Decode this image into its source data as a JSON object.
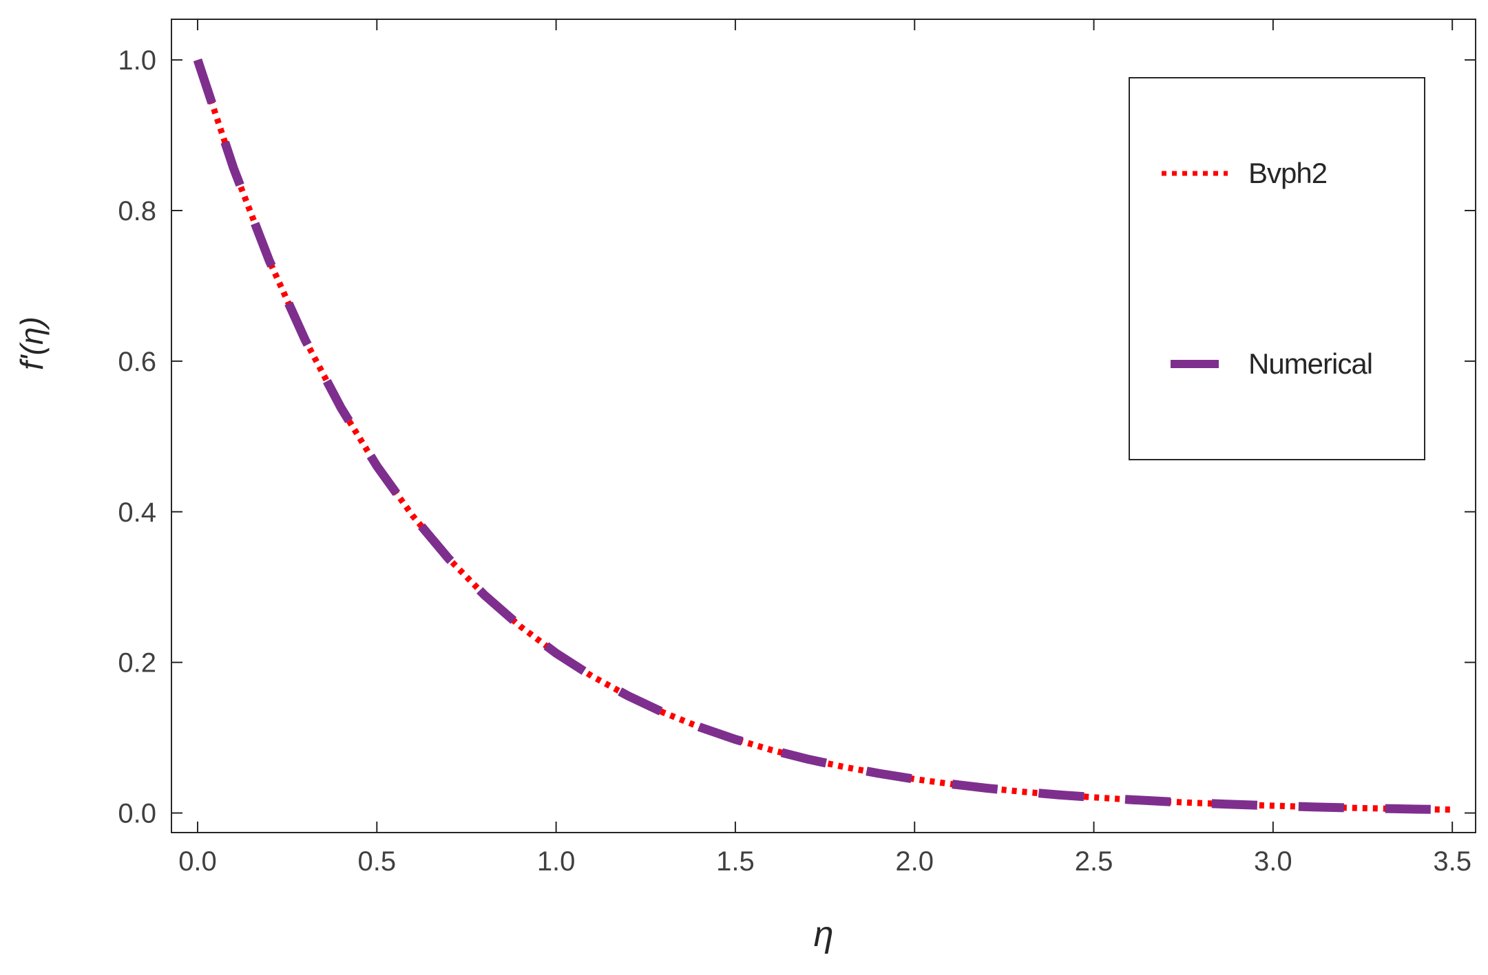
{
  "chart_data": {
    "type": "line",
    "title": "",
    "xlabel": "η",
    "ylabel": "f'(η)",
    "xlim": [
      -0.073,
      3.565
    ],
    "ylim": [
      -0.026,
      1.054
    ],
    "xticks": [
      0.0,
      0.5,
      1.0,
      1.5,
      2.0,
      2.5,
      3.0,
      3.5
    ],
    "xtick_labels": [
      "0.0",
      "0.5",
      "1.0",
      "1.5",
      "2.0",
      "2.5",
      "3.0",
      "3.5"
    ],
    "yticks": [
      0.0,
      0.2,
      0.4,
      0.6,
      0.8,
      1.0
    ],
    "ytick_labels": [
      "0.0",
      "0.2",
      "0.4",
      "0.6",
      "0.8",
      "1.0"
    ],
    "grid": false,
    "legend_position": "upper right",
    "axis_color": "#262626",
    "tick_label_color": "#404040",
    "background": "#FFFFFF",
    "x": [
      0.0,
      0.1,
      0.2,
      0.3,
      0.4,
      0.5,
      0.6,
      0.7,
      0.8,
      0.9,
      1.0,
      1.1,
      1.2,
      1.3,
      1.4,
      1.5,
      1.6,
      1.7,
      1.8,
      1.9,
      2.0,
      2.1,
      2.2,
      2.3,
      2.4,
      2.5,
      2.6,
      2.7,
      2.8,
      2.9,
      3.0,
      3.1,
      3.2,
      3.3,
      3.4,
      3.5
    ],
    "series": [
      {
        "name": "Bvph2",
        "color": "#FF0000",
        "style": "dotted",
        "values": [
          1.0,
          0.8565,
          0.7334,
          0.6281,
          0.5379,
          0.4607,
          0.3946,
          0.3379,
          0.2894,
          0.2478,
          0.2122,
          0.1817,
          0.1557,
          0.1333,
          0.1142,
          0.0978,
          0.0837,
          0.0717,
          0.0614,
          0.0526,
          0.045,
          0.0386,
          0.033,
          0.0283,
          0.0242,
          0.0208,
          0.0178,
          0.0152,
          0.013,
          0.0112,
          0.0096,
          0.0082,
          0.007,
          0.006,
          0.0051,
          0.0044
        ]
      },
      {
        "name": "Numerical",
        "color": "#7E2F8E",
        "style": "dashed",
        "values": [
          1.0,
          0.8565,
          0.7334,
          0.6281,
          0.5379,
          0.4607,
          0.3946,
          0.3379,
          0.2894,
          0.2478,
          0.2122,
          0.1817,
          0.1557,
          0.1333,
          0.1142,
          0.0978,
          0.0837,
          0.0717,
          0.0614,
          0.0526,
          0.045,
          0.0386,
          0.033,
          0.0283,
          0.0242,
          0.0208,
          0.0178,
          0.0152,
          0.013,
          0.0112,
          0.0096,
          0.0082,
          0.007,
          0.006,
          0.0051,
          0.0044
        ]
      }
    ]
  }
}
